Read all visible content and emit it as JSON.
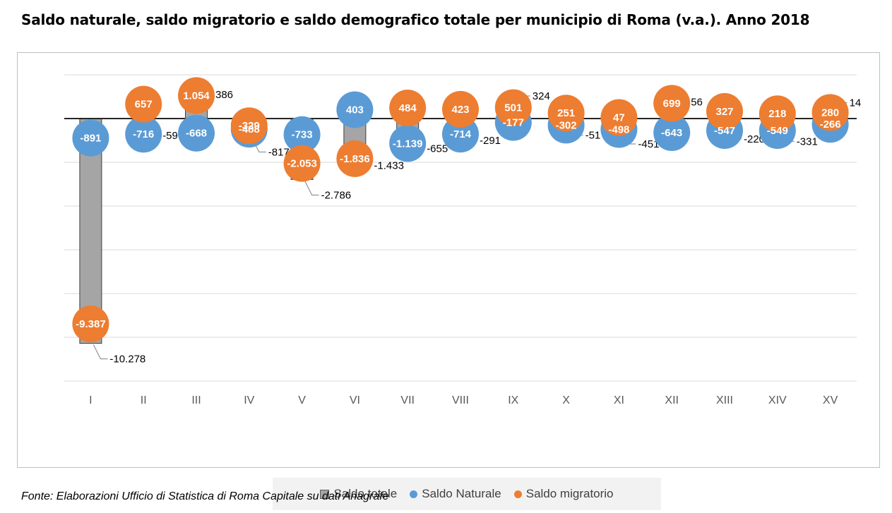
{
  "title": "Saldo naturale, saldo migratorio e saldo demografico totale per municipio di Roma (v.a.). Anno 2018",
  "source": "Fonte: Elaborazioni Ufficio di Statistica di Roma Capitale su dati Anagrafe",
  "chart_data": {
    "type": "bar",
    "categories": [
      "I",
      "II",
      "III",
      "IV",
      "V",
      "VI",
      "VII",
      "VIII",
      "IX",
      "X",
      "XI",
      "XII",
      "XIII",
      "XIV",
      "XV"
    ],
    "ylim": [
      -12000,
      2000
    ],
    "grid": true,
    "legend_position": "bottom",
    "series": [
      {
        "name": "Saldo totale",
        "kind": "bar",
        "color": "#a5a5a5",
        "values": [
          -10278,
          -59,
          386,
          -817,
          -2786,
          -1433,
          -655,
          -291,
          324,
          -51,
          -451,
          56,
          -220,
          -331,
          14
        ],
        "labels": [
          "-10.278",
          "-59",
          "386",
          "-817",
          "-2.786",
          "-1.433",
          "-655",
          "-291",
          "324",
          "-51",
          "-451",
          "56",
          "-220",
          "-331",
          "14"
        ]
      },
      {
        "name": "Saldo Naturale",
        "kind": "dot",
        "color": "#5b9bd5",
        "values": [
          -891,
          -716,
          -668,
          -488,
          -733,
          403,
          -1139,
          -714,
          -177,
          -302,
          -498,
          -643,
          -547,
          -549,
          -266
        ],
        "labels": [
          "-891",
          "-716",
          "-668",
          "-488",
          "-733",
          "403",
          "-1.139",
          "-714",
          "-177",
          "-302",
          "-498",
          "-643",
          "-547",
          "-549",
          "-266"
        ]
      },
      {
        "name": "Saldo migratorio",
        "kind": "dot",
        "color": "#ed7d31",
        "values": [
          -9387,
          657,
          1054,
          -329,
          -2053,
          -1836,
          484,
          423,
          501,
          251,
          47,
          699,
          327,
          218,
          280
        ],
        "labels": [
          "-9.387",
          "657",
          "1.054",
          "-329",
          "-2.053",
          "-1.836",
          "484",
          "423",
          "501",
          "251",
          "47",
          "699",
          "327",
          "218",
          "280"
        ]
      }
    ]
  }
}
